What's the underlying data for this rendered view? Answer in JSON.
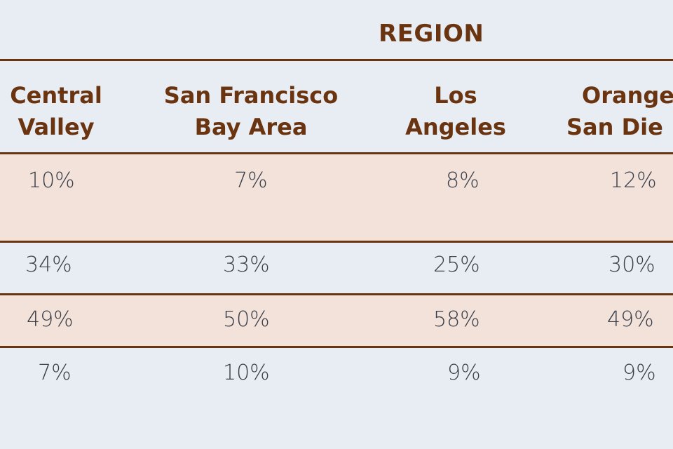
{
  "table": {
    "group_header": "REGION",
    "columns": [
      {
        "line1": "Central",
        "line2": "Valley"
      },
      {
        "line1": "San Francisco",
        "line2": "Bay Area"
      },
      {
        "line1": "Los",
        "line2": "Angeles"
      },
      {
        "line1": "Orange",
        "line2": "San Die"
      }
    ],
    "rows": [
      [
        "10%",
        "7%",
        "8%",
        "12%"
      ],
      [
        "34%",
        "33%",
        "25%",
        "30%"
      ],
      [
        "49%",
        "50%",
        "58%",
        "49%"
      ],
      [
        "7%",
        "10%",
        "9%",
        "9%"
      ]
    ]
  },
  "colors": {
    "header_brown": "#6b3410",
    "shaded_row": "#f2e2da",
    "background": "#e8edf3",
    "text": "#3a3f4a"
  }
}
